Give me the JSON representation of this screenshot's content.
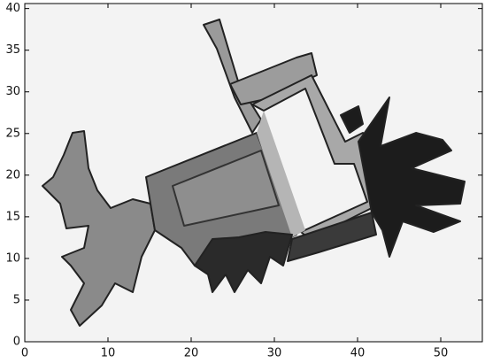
{
  "chart_data": {
    "type": "map",
    "xlim": [
      0,
      55
    ],
    "ylim": [
      0,
      40.6
    ],
    "xticks": [
      0,
      10,
      20,
      30,
      40,
      50
    ],
    "yticks": [
      0,
      5,
      10,
      15,
      20,
      25,
      30,
      35,
      40
    ]
  }
}
